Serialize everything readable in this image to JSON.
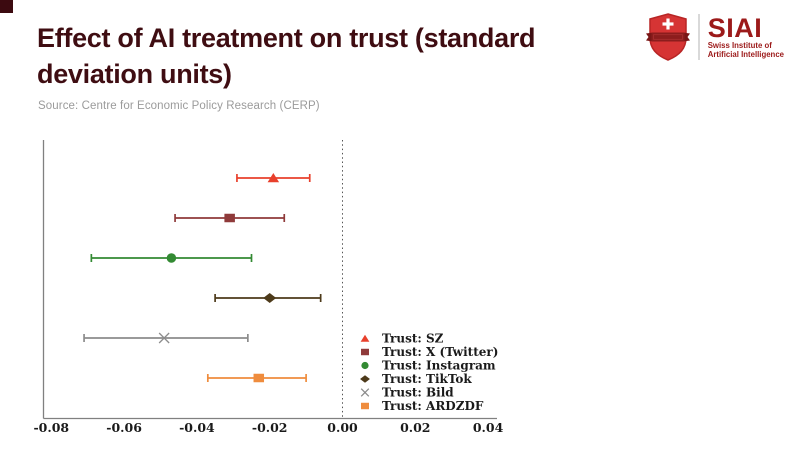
{
  "page": {
    "title": "Effect of AI treatment on trust (standard deviation units)",
    "source": "Source: Centre for Economic Policy Research (CERP)"
  },
  "logo": {
    "acronym": "SIAI",
    "org_line1": "Swiss Institute of",
    "org_line2": "Artificial Intelligence"
  },
  "colors": {
    "title": "#3f0d12",
    "source_text": "#9b9b9b",
    "axis": "#808080",
    "tick_label": "#1a1a1a",
    "zero_line": "#555555",
    "logo_red": "#d63434",
    "logo_ribbon": "#8c1d1d",
    "logo_text": "#9c1a1a",
    "corner_accent": "#3c0a10"
  },
  "chart_data": {
    "type": "scatter",
    "subtype": "horizontal-errorbar-forest-plot",
    "title": "",
    "xlabel": "",
    "ylabel": "",
    "xlim": [
      -0.082,
      0.042
    ],
    "xticks": [
      -0.08,
      -0.06,
      -0.04,
      -0.02,
      0.0,
      0.02,
      0.04
    ],
    "xtick_labels": [
      "-0.08",
      "-0.06",
      "-0.04",
      "-0.02",
      "0.00",
      "0.02",
      "0.04"
    ],
    "zero_reference_line": 0.0,
    "grid": false,
    "legend_position": "lower-right-inside",
    "series": [
      {
        "label": "Trust: SZ",
        "marker": "triangle",
        "color": "#e8402c",
        "value": -0.019,
        "ci_low": -0.029,
        "ci_high": -0.009
      },
      {
        "label": "Trust: X (Twitter)",
        "marker": "square",
        "color": "#8f3a3a",
        "value": -0.031,
        "ci_low": -0.046,
        "ci_high": -0.016
      },
      {
        "label": "Trust: Instagram",
        "marker": "circle",
        "color": "#338a33",
        "value": -0.047,
        "ci_low": -0.069,
        "ci_high": -0.025
      },
      {
        "label": "Trust: TikTok",
        "marker": "diamond",
        "color": "#4d3a1a",
        "value": -0.02,
        "ci_low": -0.035,
        "ci_high": -0.006
      },
      {
        "label": "Trust: Bild",
        "marker": "x",
        "color": "#8c8c8c",
        "value": -0.049,
        "ci_low": -0.071,
        "ci_high": -0.026
      },
      {
        "label": "Trust: ARDZDF",
        "marker": "square",
        "color": "#ef8c3d",
        "value": -0.023,
        "ci_low": -0.037,
        "ci_high": -0.01
      }
    ]
  }
}
